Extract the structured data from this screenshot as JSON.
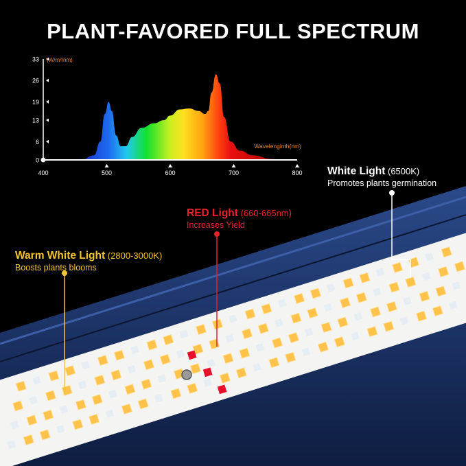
{
  "title": "PLANT-FAVORED FULL SPECTRUM",
  "annotations": {
    "white": {
      "label": "White Light",
      "spec": "(6500K)",
      "desc": "Promotes plants germination",
      "color": "#ffffff"
    },
    "red": {
      "label": "RED Light",
      "spec": "(660-665nm)",
      "desc": "Increases Yield",
      "color": "#e8202a"
    },
    "warm": {
      "label": "Warm White Light",
      "spec": "(2800-3000K)",
      "desc": "Boosts plants blooms",
      "color": "#f5c531"
    }
  },
  "chart_data": {
    "type": "area",
    "title": "",
    "xlabel": "Wavelenginth(nm)",
    "ylabel": "(W/m²/nm)",
    "xlim": [
      400,
      800
    ],
    "ylim": [
      0,
      33
    ],
    "xticks": [
      "400",
      "500",
      "600",
      "700",
      "800"
    ],
    "yticks": [
      "0",
      "6",
      "13",
      "19",
      "26",
      "33"
    ],
    "grid": false,
    "x": [
      460,
      480,
      490,
      497,
      503,
      508,
      515,
      522,
      530,
      540,
      555,
      575,
      590,
      600,
      615,
      630,
      645,
      655,
      660,
      665,
      672,
      678,
      685,
      695,
      710,
      730,
      760,
      770
    ],
    "y": [
      0,
      1.5,
      6,
      15,
      19,
      16,
      8,
      4.5,
      4.5,
      7.5,
      10.5,
      12,
      13,
      14.5,
      16.5,
      16.8,
      16,
      15,
      16,
      22,
      28,
      25,
      14,
      6,
      3,
      1.5,
      0.3,
      0
    ]
  }
}
